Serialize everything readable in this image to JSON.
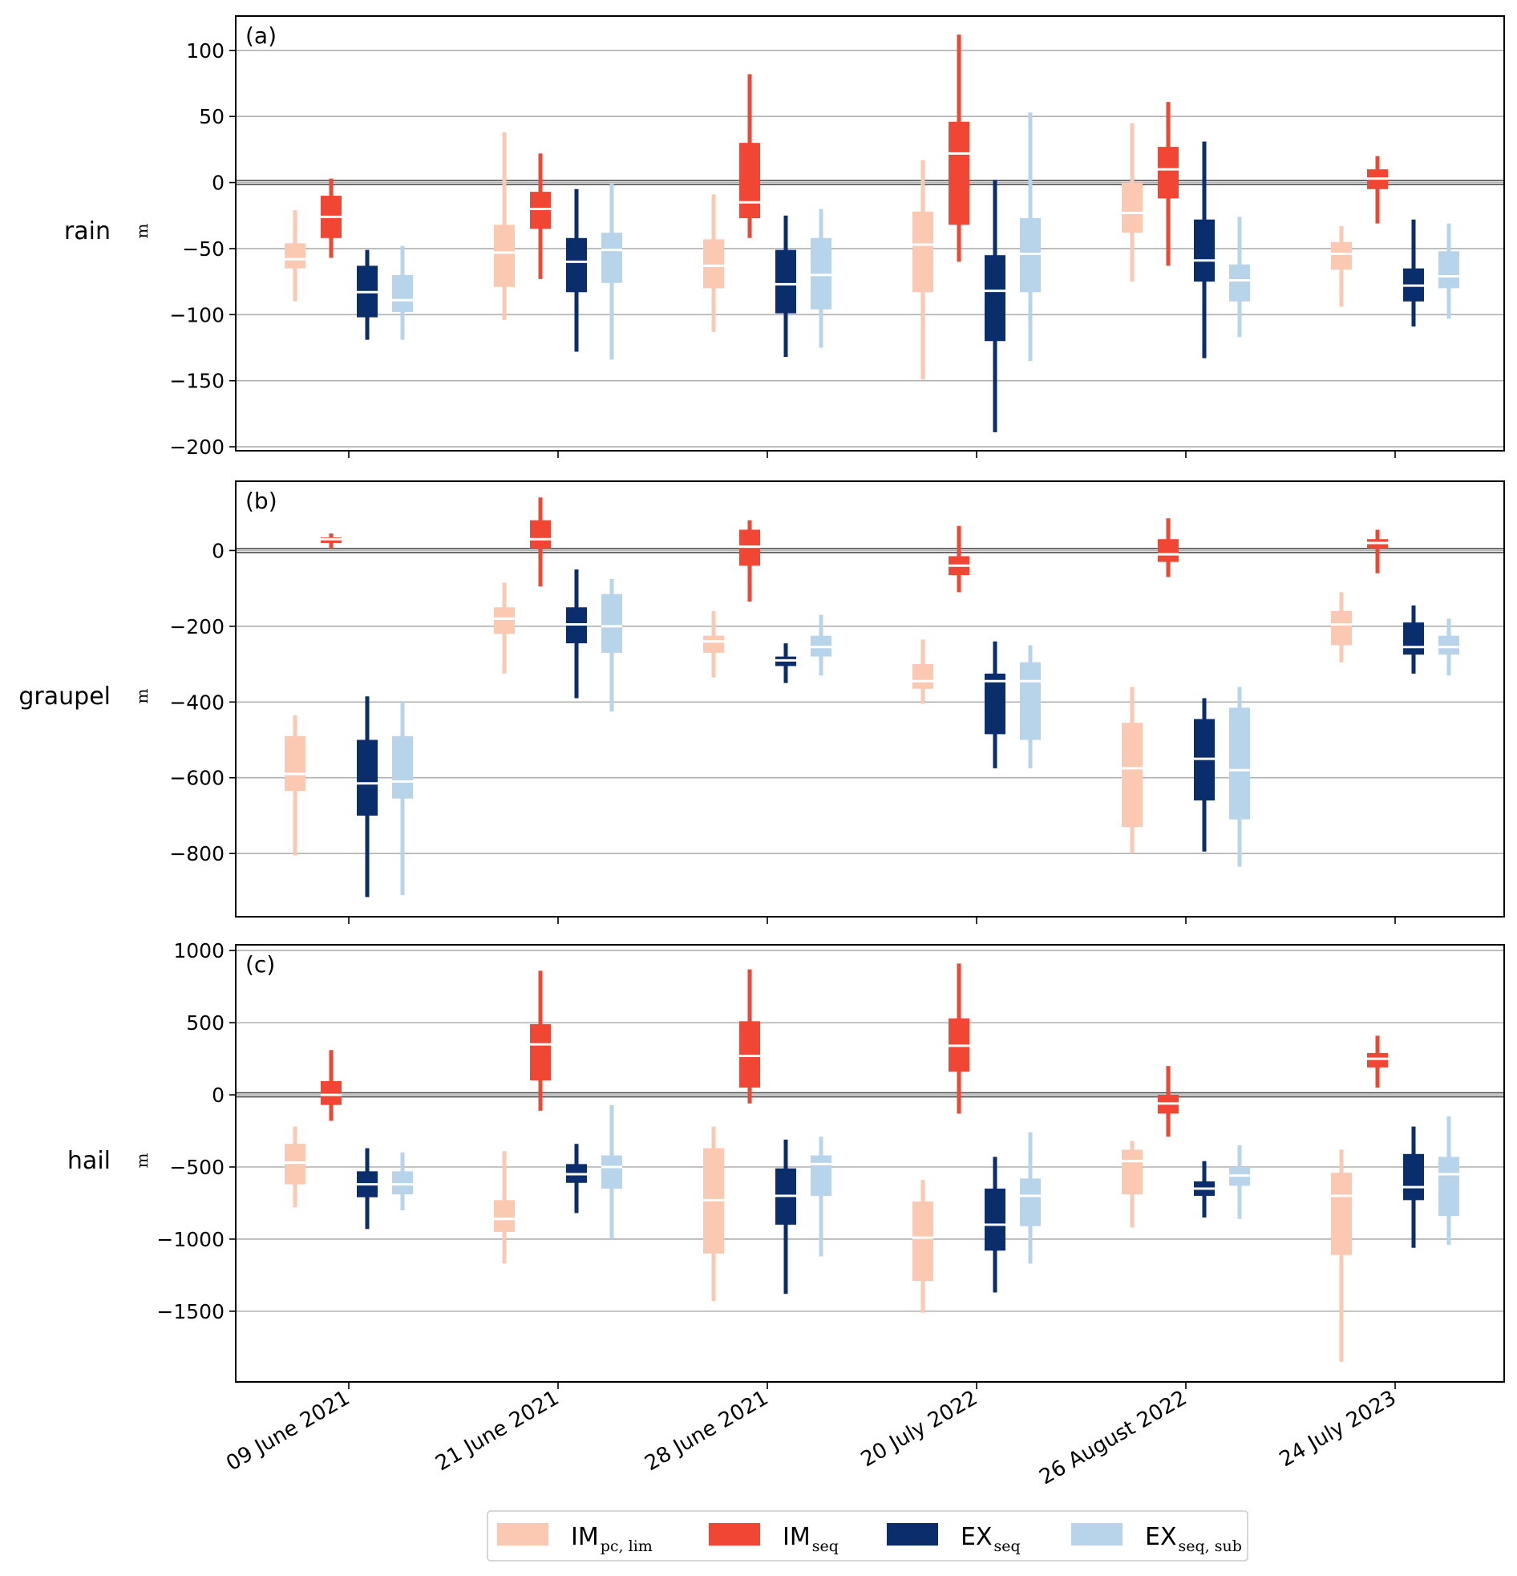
{
  "chart_data": {
    "type": "boxplot",
    "categories": [
      "09 June 2021",
      "21 June 2021",
      "28 June 2021",
      "20 July 2022",
      "26 August 2022",
      "24 July 2023"
    ],
    "series": [
      {
        "name": "IM",
        "subscript": "pc, lim",
        "color": "#fbc9b2"
      },
      {
        "name": "IM",
        "subscript": "seq",
        "color": "#f04633"
      },
      {
        "name": "EX",
        "subscript": "seq",
        "color": "#0a2d6b"
      },
      {
        "name": "EX",
        "subscript": "seq, sub",
        "color": "#b8d4ea"
      }
    ],
    "panels": [
      {
        "tag": "(a)",
        "ylabel": "rain",
        "unit": "m",
        "ylim": [
          -203,
          126
        ],
        "yticks": [
          -200,
          -150,
          -100,
          -50,
          0,
          50,
          100
        ],
        "ytick_labels": [
          "−200",
          "−150",
          "−100",
          "−50",
          "0",
          "50",
          "100"
        ],
        "boxes": [
          [
            [
              -90,
              -65,
              -58,
              -46,
              -21
            ],
            [
              -57,
              -42,
              -26,
              -10,
              3
            ],
            [
              -119,
              -102,
              -83,
              -63,
              -51
            ],
            [
              -119,
              -98,
              -89,
              -70,
              -48
            ]
          ],
          [
            [
              -104,
              -79,
              -53,
              -32,
              38
            ],
            [
              -73,
              -35,
              -20,
              -7,
              22
            ],
            [
              -128,
              -83,
              -60,
              -42,
              -5
            ],
            [
              -134,
              -76,
              -51,
              -38,
              -1
            ]
          ],
          [
            [
              -113,
              -80,
              -63,
              -43,
              -9
            ],
            [
              -42,
              -27,
              -15,
              30,
              82
            ],
            [
              -132,
              -99,
              -77,
              -51,
              -25
            ],
            [
              -125,
              -96,
              -70,
              -42,
              -20
            ]
          ],
          [
            [
              -149,
              -83,
              -47,
              -22,
              17
            ],
            [
              -60,
              -32,
              22,
              46,
              112
            ],
            [
              -189,
              -120,
              -82,
              -55,
              2
            ],
            [
              -135,
              -83,
              -54,
              -27,
              53
            ]
          ],
          [
            [
              -75,
              -38,
              -23,
              0,
              45
            ],
            [
              -63,
              -12,
              10,
              27,
              61
            ],
            [
              -133,
              -75,
              -59,
              -28,
              31
            ],
            [
              -117,
              -90,
              -74,
              -62,
              -26
            ]
          ],
          [
            [
              -94,
              -66,
              -54,
              -45,
              -33
            ],
            [
              -31,
              -5,
              3,
              10,
              20
            ],
            [
              -109,
              -90,
              -78,
              -65,
              -28
            ],
            [
              -103,
              -80,
              -71,
              -52,
              -31
            ]
          ]
        ]
      },
      {
        "tag": "(b)",
        "ylabel": "graupel",
        "unit": "m",
        "ylim": [
          -967,
          183
        ],
        "yticks": [
          -800,
          -600,
          -400,
          -200,
          0
        ],
        "ytick_labels": [
          "−800",
          "−600",
          "−400",
          "−200",
          "0"
        ],
        "boxes": [
          [
            [
              -805,
              -635,
              -590,
              -490,
              -435
            ],
            [
              5,
              20,
              30,
              35,
              45
            ],
            [
              -915,
              -700,
              -615,
              -500,
              -385
            ],
            [
              -910,
              -655,
              -610,
              -490,
              -400
            ]
          ],
          [
            [
              -325,
              -220,
              -180,
              -150,
              -85
            ],
            [
              -95,
              5,
              30,
              80,
              140
            ],
            [
              -390,
              -245,
              -195,
              -150,
              -50
            ],
            [
              -425,
              -270,
              -200,
              -115,
              -75
            ]
          ],
          [
            [
              -335,
              -270,
              -240,
              -225,
              -160
            ],
            [
              -135,
              -40,
              10,
              55,
              80
            ],
            [
              -350,
              -305,
              -290,
              -280,
              -245
            ],
            [
              -330,
              -280,
              -255,
              -225,
              -170
            ]
          ],
          [
            [
              -405,
              -365,
              -345,
              -300,
              -235
            ],
            [
              -110,
              -65,
              -40,
              -15,
              65
            ],
            [
              -575,
              -485,
              -345,
              -325,
              -240
            ],
            [
              -575,
              -500,
              -345,
              -295,
              -250
            ]
          ],
          [
            [
              -800,
              -730,
              -575,
              -455,
              -360
            ],
            [
              -70,
              -30,
              -10,
              30,
              85
            ],
            [
              -795,
              -660,
              -550,
              -445,
              -390
            ],
            [
              -835,
              -710,
              -580,
              -415,
              -360
            ]
          ],
          [
            [
              -295,
              -250,
              -195,
              -160,
              -110
            ],
            [
              -60,
              5,
              20,
              30,
              55
            ],
            [
              -325,
              -275,
              -255,
              -190,
              -145
            ],
            [
              -330,
              -275,
              -255,
              -225,
              -180
            ]
          ]
        ]
      },
      {
        "tag": "(c)",
        "ylabel": "hail",
        "unit": "m",
        "ylim": [
          -1990,
          1040
        ],
        "yticks": [
          -1500,
          -1000,
          -500,
          0,
          500,
          1000
        ],
        "ytick_labels": [
          "−1500",
          "−1000",
          "−500",
          "0",
          "500",
          "1000"
        ],
        "boxes": [
          [
            [
              -780,
              -620,
              -470,
              -340,
              -220
            ],
            [
              -180,
              -70,
              0,
              95,
              310
            ],
            [
              -930,
              -710,
              -620,
              -530,
              -370
            ],
            [
              -800,
              -690,
              -620,
              -530,
              -400
            ]
          ],
          [
            [
              -1170,
              -950,
              -860,
              -730,
              -390
            ],
            [
              -110,
              100,
              350,
              490,
              860
            ],
            [
              -820,
              -610,
              -550,
              -480,
              -340
            ],
            [
              -1000,
              -650,
              -500,
              -420,
              -70
            ]
          ],
          [
            [
              -1430,
              -1100,
              -730,
              -370,
              -220
            ],
            [
              -60,
              50,
              270,
              510,
              870
            ],
            [
              -1380,
              -900,
              -700,
              -510,
              -310
            ],
            [
              -1120,
              -700,
              -480,
              -420,
              -290
            ]
          ],
          [
            [
              -1510,
              -1290,
              -990,
              -740,
              -590
            ],
            [
              -130,
              160,
              340,
              530,
              910
            ],
            [
              -1370,
              -1080,
              -900,
              -650,
              -430
            ],
            [
              -1170,
              -910,
              -700,
              -580,
              -260
            ]
          ],
          [
            [
              -920,
              -690,
              -460,
              -380,
              -320
            ],
            [
              -290,
              -130,
              -60,
              0,
              200
            ],
            [
              -850,
              -700,
              -650,
              -600,
              -460
            ],
            [
              -860,
              -630,
              -560,
              -500,
              -350
            ]
          ],
          [
            [
              -1850,
              -1110,
              -700,
              -540,
              -380
            ],
            [
              50,
              190,
              250,
              290,
              410
            ],
            [
              -1060,
              -730,
              -640,
              -410,
              -220
            ],
            [
              -1040,
              -840,
              -550,
              -430,
              -150
            ]
          ]
        ]
      }
    ]
  }
}
